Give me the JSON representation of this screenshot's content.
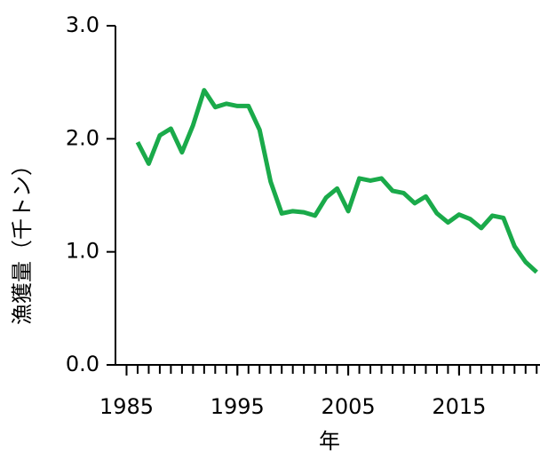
{
  "chart_data": {
    "type": "line",
    "x_label": "年",
    "y_label": "漁獲量（千トン）",
    "x": [
      1986,
      1987,
      1988,
      1989,
      1990,
      1991,
      1992,
      1993,
      1994,
      1995,
      1996,
      1997,
      1998,
      1999,
      2000,
      2001,
      2002,
      2003,
      2004,
      2005,
      2006,
      2007,
      2008,
      2009,
      2010,
      2011,
      2012,
      2013,
      2014,
      2015,
      2016,
      2017,
      2018,
      2019,
      2020,
      2021,
      2022
    ],
    "series": [
      {
        "color": "#1aaa4a",
        "values": [
          1.97,
          1.78,
          2.03,
          2.09,
          1.88,
          2.12,
          2.43,
          2.28,
          2.31,
          2.29,
          2.29,
          2.08,
          1.62,
          1.34,
          1.36,
          1.35,
          1.32,
          1.48,
          1.56,
          1.36,
          1.65,
          1.63,
          1.65,
          1.54,
          1.52,
          1.43,
          1.49,
          1.34,
          1.26,
          1.33,
          1.29,
          1.21,
          1.32,
          1.3,
          1.05,
          0.91,
          0.82
        ]
      }
    ],
    "xlim": [
      1984,
      2022.3
    ],
    "ylim": [
      0,
      3
    ],
    "xticks": [
      1985,
      1995,
      2005,
      2015
    ],
    "minor_xticks": [
      1985,
      1986,
      1987,
      1988,
      1989,
      1990,
      1991,
      1992,
      1993,
      1994,
      1995,
      1996,
      1997,
      1998,
      1999,
      2000,
      2001,
      2002,
      2003,
      2004,
      2005,
      2006,
      2007,
      2008,
      2009,
      2010,
      2011,
      2012,
      2013,
      2014,
      2015,
      2016,
      2017,
      2018,
      2019,
      2020,
      2021,
      2022
    ],
    "yticks": [
      {
        "value": 0,
        "label": "0.0"
      },
      {
        "value": 1,
        "label": "1.0"
      },
      {
        "value": 2,
        "label": "2.0"
      },
      {
        "value": 3,
        "label": "3.0"
      }
    ],
    "grid": false
  }
}
